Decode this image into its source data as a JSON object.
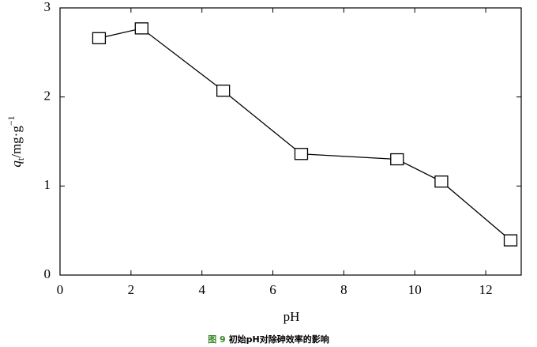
{
  "chart_data": {
    "type": "line",
    "x": [
      1.1,
      2.3,
      4.6,
      6.8,
      9.5,
      10.75,
      12.7
    ],
    "values": [
      2.66,
      2.77,
      2.07,
      1.36,
      1.3,
      1.05,
      0.39
    ],
    "color": "#000000",
    "xlim": [
      0,
      13
    ],
    "xticks": [
      0,
      2,
      4,
      6,
      8,
      10,
      12
    ],
    "ylim": [
      0,
      3
    ],
    "yticks": [
      0,
      1,
      2,
      3
    ],
    "x_label": "pH",
    "y_label": [
      "q",
      "t",
      "/mg·g",
      "−1"
    ],
    "caption": {
      "label": "图 9",
      "text": "初始pH对除砷效率的影响"
    }
  }
}
